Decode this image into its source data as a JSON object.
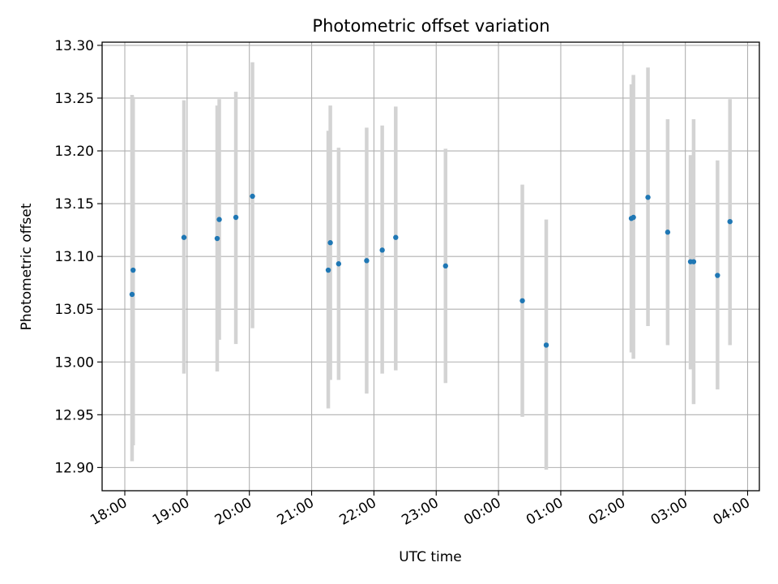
{
  "chart_data": {
    "type": "scatter",
    "title": "Photometric offset variation",
    "xlabel": "UTC time",
    "ylabel": "Photometric offset",
    "x_tick_labels": [
      "18:00",
      "19:00",
      "20:00",
      "21:00",
      "22:00",
      "23:00",
      "00:00",
      "01:00",
      "02:00",
      "03:00",
      "04:00"
    ],
    "y_tick_labels": [
      "12.90",
      "12.95",
      "13.00",
      "13.05",
      "13.10",
      "13.15",
      "13.20",
      "13.25",
      "13.30"
    ],
    "ylim": [
      12.878,
      13.303
    ],
    "grid": true,
    "point_color": "#1f77b4",
    "errorbar_color": "#d3d3d3",
    "points": [
      {
        "x": "18:07",
        "y": 13.064,
        "ylow": 12.906,
        "yhigh": 13.253
      },
      {
        "x": "18:08",
        "y": 13.087,
        "ylow": 12.921,
        "yhigh": 13.251
      },
      {
        "x": "18:57",
        "y": 13.118,
        "ylow": 12.989,
        "yhigh": 13.248
      },
      {
        "x": "19:29",
        "y": 13.117,
        "ylow": 12.991,
        "yhigh": 13.243
      },
      {
        "x": "19:31",
        "y": 13.135,
        "ylow": 13.021,
        "yhigh": 13.249
      },
      {
        "x": "19:47",
        "y": 13.137,
        "ylow": 13.017,
        "yhigh": 13.256
      },
      {
        "x": "20:03",
        "y": 13.157,
        "ylow": 13.032,
        "yhigh": 13.284
      },
      {
        "x": "21:16",
        "y": 13.087,
        "ylow": 12.956,
        "yhigh": 13.219
      },
      {
        "x": "21:18",
        "y": 13.113,
        "ylow": 12.983,
        "yhigh": 13.243
      },
      {
        "x": "21:26",
        "y": 13.093,
        "ylow": 12.983,
        "yhigh": 13.203
      },
      {
        "x": "21:53",
        "y": 13.096,
        "ylow": 12.97,
        "yhigh": 13.222
      },
      {
        "x": "22:08",
        "y": 13.106,
        "ylow": 12.989,
        "yhigh": 13.224
      },
      {
        "x": "22:21",
        "y": 13.118,
        "ylow": 12.992,
        "yhigh": 13.242
      },
      {
        "x": "23:09",
        "y": 13.091,
        "ylow": 12.98,
        "yhigh": 13.202
      },
      {
        "x": "00:23",
        "y": 13.058,
        "ylow": 12.948,
        "yhigh": 13.168
      },
      {
        "x": "00:46",
        "y": 13.016,
        "ylow": 12.898,
        "yhigh": 13.135
      },
      {
        "x": "02:08",
        "y": 13.136,
        "ylow": 13.009,
        "yhigh": 13.263
      },
      {
        "x": "02:10",
        "y": 13.137,
        "ylow": 13.003,
        "yhigh": 13.272
      },
      {
        "x": "02:24",
        "y": 13.156,
        "ylow": 13.034,
        "yhigh": 13.279
      },
      {
        "x": "02:43",
        "y": 13.123,
        "ylow": 13.016,
        "yhigh": 13.23
      },
      {
        "x": "03:05",
        "y": 13.095,
        "ylow": 12.993,
        "yhigh": 13.196
      },
      {
        "x": "03:08",
        "y": 13.095,
        "ylow": 12.96,
        "yhigh": 13.23
      },
      {
        "x": "03:31",
        "y": 13.082,
        "ylow": 12.974,
        "yhigh": 13.191
      },
      {
        "x": "03:43",
        "y": 13.133,
        "ylow": 13.016,
        "yhigh": 13.249
      }
    ]
  }
}
